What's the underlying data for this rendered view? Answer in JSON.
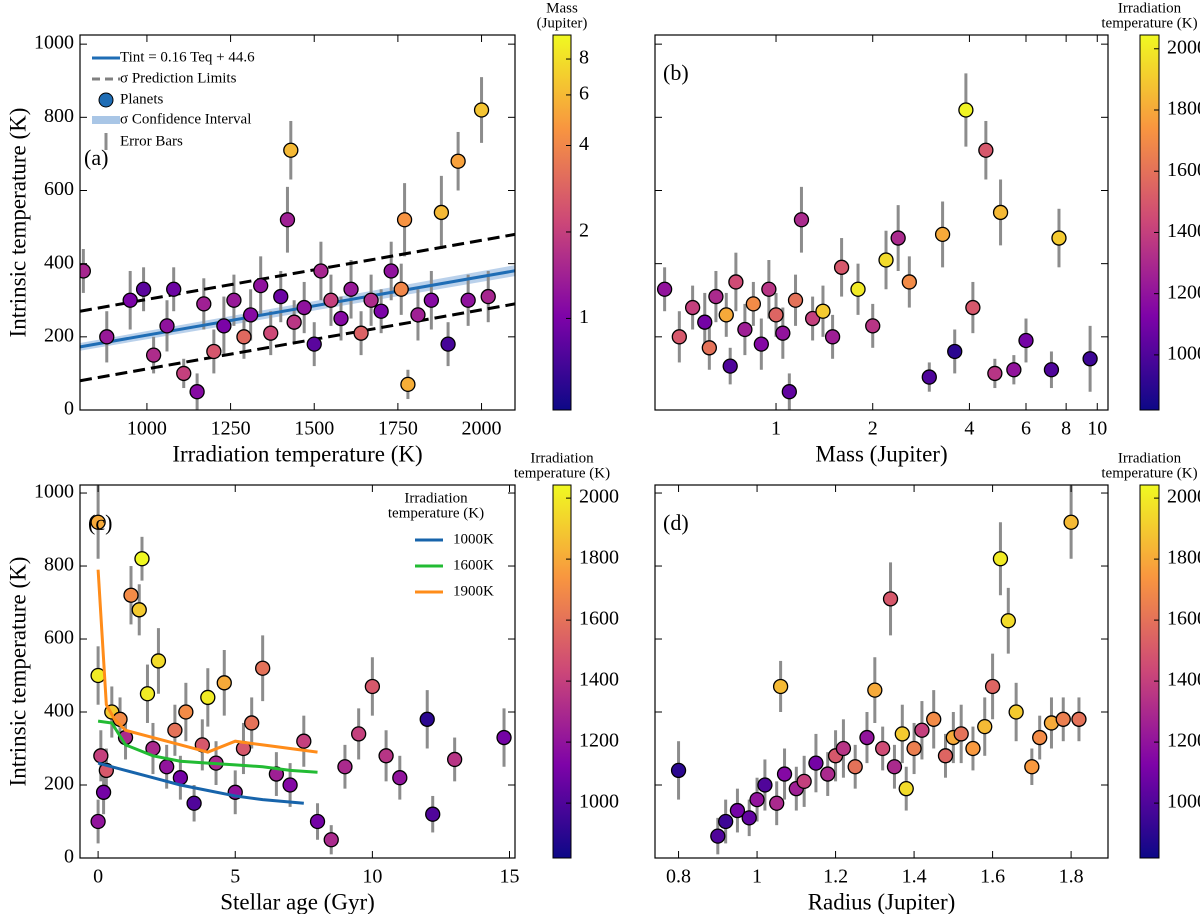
{
  "chart_data": [
    {
      "type": "scatter",
      "panel_label": "(a)",
      "xlabel": "Irradiation temperature (K)",
      "ylabel": "Intrinsic temperature (K)",
      "xlim": [
        800,
        2100
      ],
      "xticks": [
        1000,
        1250,
        1500,
        1750,
        2000
      ],
      "ylim": [
        0,
        1025
      ],
      "yticks": [
        0,
        200,
        400,
        600,
        800,
        1000
      ],
      "ytick_labels": true,
      "x": [
        810,
        880,
        950,
        990,
        1020,
        1060,
        1080,
        1110,
        1150,
        1170,
        1200,
        1230,
        1260,
        1290,
        1310,
        1340,
        1370,
        1400,
        1420,
        1440,
        1470,
        1500,
        1520,
        1550,
        1580,
        1610,
        1640,
        1670,
        1700,
        1730,
        1760,
        1780,
        1810,
        1850,
        1880,
        1900,
        1930,
        1960,
        2000,
        2020,
        1430,
        1770
      ],
      "y": [
        380,
        200,
        300,
        330,
        150,
        230,
        330,
        100,
        50,
        290,
        160,
        230,
        300,
        200,
        260,
        340,
        210,
        310,
        520,
        240,
        280,
        180,
        380,
        300,
        250,
        330,
        210,
        300,
        270,
        380,
        330,
        70,
        260,
        300,
        540,
        180,
        680,
        300,
        820,
        310,
        710,
        520
      ],
      "yerr": [
        60,
        70,
        80,
        60,
        50,
        70,
        60,
        40,
        50,
        70,
        60,
        80,
        70,
        60,
        70,
        80,
        60,
        70,
        90,
        60,
        70,
        60,
        80,
        70,
        60,
        80,
        60,
        70,
        60,
        80,
        70,
        40,
        70,
        80,
        100,
        60,
        80,
        70,
        90,
        70,
        80,
        100
      ],
      "color_values": [
        1.5,
        1.3,
        1.0,
        0.8,
        1.6,
        1.2,
        0.9,
        2.0,
        1.1,
        1.4,
        2.5,
        1.0,
        1.3,
        3.0,
        1.1,
        1.2,
        2.2,
        0.9,
        1.4,
        1.8,
        1.2,
        0.8,
        1.5,
        2.0,
        1.1,
        1.3,
        2.8,
        1.6,
        1.0,
        1.2,
        4.0,
        5.5,
        1.4,
        1.1,
        6.0,
        0.7,
        5.0,
        1.2,
        6.5,
        1.5,
        6.0,
        4.5
      ],
      "points_name": "Planets",
      "errorbar_name": "Error Bars",
      "lines": [
        {
          "name": "Tint = 0.16 Teq + 44.6",
          "color": "#1f6db5",
          "dash": false,
          "x": [
            800,
            2100
          ],
          "y": [
            172.6,
            380.6
          ]
        },
        {
          "name": "σ Prediction Limits",
          "color": "#000000",
          "dash": true,
          "x": [
            800,
            2100
          ],
          "y": [
            270,
            480
          ]
        },
        {
          "name": null,
          "color": "#000000",
          "dash": true,
          "x": [
            800,
            2100
          ],
          "y": [
            80,
            290
          ]
        }
      ],
      "band": {
        "name": "σ Confidence Interval",
        "color": "#a9c6e6",
        "x": [
          800,
          2100
        ],
        "lower": [
          162,
          366
        ],
        "upper": [
          183,
          396
        ]
      },
      "colorbar_label": [
        "Mass",
        "(Jupiter)"
      ],
      "cscale": "log",
      "clim": [
        0.48,
        9.7
      ],
      "cticks": [
        1,
        2,
        4,
        6,
        8
      ]
    },
    {
      "type": "scatter",
      "panel_label": "(b)",
      "xlabel": "Mass (Jupiter)",
      "xscale": "log",
      "xlim": [
        0.42,
        10.8
      ],
      "xticks": [
        1,
        2,
        4,
        6,
        8,
        10
      ],
      "ylim": [
        0,
        1025
      ],
      "yticks": [
        0,
        200,
        400,
        600,
        800,
        1000
      ],
      "ytick_labels": false,
      "x": [
        0.45,
        0.5,
        0.55,
        0.6,
        0.62,
        0.65,
        0.7,
        0.72,
        0.75,
        0.8,
        0.85,
        0.9,
        0.95,
        1.0,
        1.05,
        1.1,
        1.15,
        1.2,
        1.3,
        1.4,
        1.5,
        1.6,
        1.8,
        2.0,
        2.2,
        2.4,
        2.6,
        3.0,
        3.3,
        3.6,
        3.9,
        4.1,
        4.5,
        4.8,
        5.0,
        5.5,
        6.0,
        7.2,
        7.6,
        9.5
      ],
      "y": [
        330,
        200,
        280,
        240,
        170,
        310,
        260,
        120,
        350,
        220,
        290,
        180,
        330,
        260,
        210,
        50,
        300,
        520,
        250,
        270,
        200,
        390,
        330,
        230,
        410,
        470,
        350,
        90,
        480,
        160,
        820,
        280,
        710,
        100,
        540,
        110,
        190,
        110,
        470,
        140
      ],
      "yerr": [
        60,
        70,
        60,
        80,
        60,
        70,
        60,
        50,
        80,
        70,
        60,
        70,
        80,
        60,
        70,
        50,
        70,
        90,
        60,
        70,
        60,
        80,
        70,
        60,
        80,
        90,
        70,
        40,
        90,
        60,
        100,
        70,
        80,
        40,
        90,
        40,
        60,
        50,
        80,
        90
      ],
      "color_values": [
        1200,
        1500,
        1400,
        1100,
        1600,
        1300,
        1800,
        1000,
        1450,
        1250,
        1700,
        1150,
        1350,
        1550,
        1200,
        1050,
        1600,
        1300,
        1400,
        1900,
        1250,
        1500,
        2000,
        1350,
        1950,
        1300,
        1700,
        1000,
        1800,
        900,
        2030,
        1500,
        1500,
        1350,
        1850,
        1200,
        1100,
        1000,
        1900,
        950
      ],
      "colorbar_label": [
        "Irradiation",
        "temperature (K)"
      ],
      "clim": [
        820,
        2045
      ],
      "cticks": [
        1000,
        1200,
        1400,
        1600,
        1800,
        2000
      ]
    },
    {
      "type": "scatter",
      "panel_label": "(c)",
      "xlabel": "Stellar age (Gyr)",
      "ylabel": "Intrinsic temperature (K)",
      "xlim": [
        -0.66,
        15.2
      ],
      "xticks": [
        0,
        5,
        10,
        15
      ],
      "ylim": [
        0,
        1022
      ],
      "yticks": [
        0,
        200,
        400,
        600,
        800,
        1000
      ],
      "ytick_labels": true,
      "x": [
        0,
        0,
        0,
        0.1,
        0.2,
        0.5,
        0.8,
        1,
        1.2,
        1.5,
        1.6,
        1.8,
        2,
        2.2,
        2.5,
        2.8,
        3,
        3.2,
        3.5,
        3.8,
        4,
        4.3,
        4.6,
        5,
        5.3,
        5.6,
        6,
        6.5,
        7,
        7.5,
        8,
        8.5,
        9,
        9.5,
        10,
        10.5,
        11,
        12,
        12.2,
        13,
        14.8,
        0.3
      ],
      "y": [
        920,
        500,
        100,
        280,
        180,
        400,
        380,
        330,
        720,
        680,
        820,
        450,
        300,
        540,
        250,
        350,
        220,
        400,
        150,
        310,
        440,
        260,
        480,
        180,
        300,
        370,
        520,
        230,
        200,
        320,
        100,
        50,
        250,
        340,
        470,
        280,
        220,
        380,
        120,
        270,
        330,
        240
      ],
      "yerr": [
        100,
        80,
        60,
        70,
        60,
        70,
        60,
        60,
        80,
        70,
        60,
        80,
        70,
        90,
        60,
        70,
        60,
        80,
        50,
        70,
        80,
        60,
        90,
        60,
        70,
        70,
        90,
        60,
        60,
        70,
        50,
        40,
        60,
        70,
        80,
        70,
        60,
        80,
        50,
        60,
        80,
        60
      ],
      "color_values": [
        1800,
        2000,
        1200,
        1400,
        1100,
        1900,
        1700,
        1300,
        1700,
        1900,
        2040,
        2000,
        1300,
        1950,
        1200,
        1600,
        1100,
        1700,
        1000,
        1500,
        2000,
        1300,
        1800,
        1200,
        1500,
        1600,
        1600,
        1250,
        1150,
        1400,
        1100,
        1300,
        1300,
        1400,
        1500,
        1350,
        1200,
        900,
        1000,
        1350,
        1100,
        1500
      ],
      "lines": [
        {
          "name": "1000K",
          "color": "#1764ab",
          "dash": false,
          "x": [
            0,
            1,
            2,
            3,
            4,
            5,
            6,
            7.5
          ],
          "y": [
            260,
            240,
            220,
            200,
            185,
            170,
            160,
            150
          ]
        },
        {
          "name": "1600K",
          "color": "#22bb33",
          "dash": false,
          "x": [
            0,
            0.5,
            1,
            2,
            3,
            4,
            5,
            6,
            7,
            8
          ],
          "y": [
            375,
            370,
            310,
            280,
            265,
            260,
            255,
            250,
            240,
            235
          ]
        },
        {
          "name": "1900K",
          "color": "#ff8c1a",
          "dash": false,
          "x": [
            0,
            0.3,
            0.6,
            1,
            2,
            3,
            4,
            5,
            6,
            7,
            8
          ],
          "y": [
            790,
            420,
            380,
            350,
            330,
            310,
            290,
            320,
            310,
            300,
            290
          ]
        }
      ],
      "legend_title": [
        "Irradiation",
        "temperature (K)"
      ],
      "colorbar_label": [
        "Irradiation",
        "temperature (K)"
      ],
      "clim": [
        820,
        2043
      ],
      "cticks": [
        1000,
        1200,
        1400,
        1600,
        1800,
        2000
      ]
    },
    {
      "type": "scatter",
      "panel_label": "(d)",
      "xlabel": "Radius (Jupiter)",
      "xlim": [
        0.74,
        1.894
      ],
      "xticks": [
        0.8,
        1.0,
        1.2,
        1.4,
        1.6,
        1.8
      ],
      "ylim": [
        0,
        1022
      ],
      "yticks": [
        0,
        200,
        400,
        600,
        800,
        1000
      ],
      "ytick_labels": false,
      "x": [
        0.8,
        0.9,
        0.92,
        0.95,
        0.98,
        1.0,
        1.02,
        1.05,
        1.07,
        1.1,
        1.12,
        1.15,
        1.18,
        1.2,
        1.22,
        1.25,
        1.28,
        1.3,
        1.32,
        1.34,
        1.35,
        1.37,
        1.4,
        1.42,
        1.45,
        1.48,
        1.5,
        1.52,
        1.55,
        1.58,
        1.6,
        1.62,
        1.64,
        1.66,
        1.7,
        1.72,
        1.75,
        1.78,
        1.8,
        1.82,
        1.06,
        1.38
      ],
      "y": [
        240,
        60,
        100,
        130,
        110,
        160,
        200,
        150,
        230,
        190,
        210,
        260,
        230,
        280,
        300,
        250,
        330,
        460,
        300,
        710,
        250,
        340,
        300,
        350,
        380,
        280,
        330,
        340,
        300,
        360,
        470,
        820,
        650,
        400,
        250,
        330,
        370,
        380,
        920,
        380,
        470,
        190
      ],
      "yerr": [
        80,
        50,
        60,
        60,
        50,
        60,
        70,
        60,
        70,
        60,
        70,
        80,
        60,
        70,
        80,
        60,
        70,
        90,
        60,
        100,
        60,
        80,
        70,
        80,
        80,
        60,
        70,
        80,
        60,
        80,
        90,
        100,
        90,
        80,
        50,
        60,
        70,
        60,
        100,
        60,
        70,
        60
      ],
      "color_values": [
        900,
        1000,
        950,
        1100,
        1050,
        1200,
        1000,
        1300,
        1150,
        1250,
        1400,
        1100,
        1300,
        1500,
        1350,
        1600,
        1200,
        1800,
        1450,
        1500,
        1300,
        1900,
        1650,
        1400,
        1700,
        1550,
        1800,
        1600,
        1750,
        1850,
        1550,
        2000,
        1950,
        1900,
        1750,
        1700,
        1800,
        1650,
        1850,
        1600,
        1850,
        1950
      ],
      "colorbar_label": [
        "Irradiation",
        "temperature (K)"
      ],
      "clim": [
        820,
        2043
      ],
      "cticks": [
        1000,
        1200,
        1400,
        1600,
        1800,
        2000
      ]
    }
  ]
}
